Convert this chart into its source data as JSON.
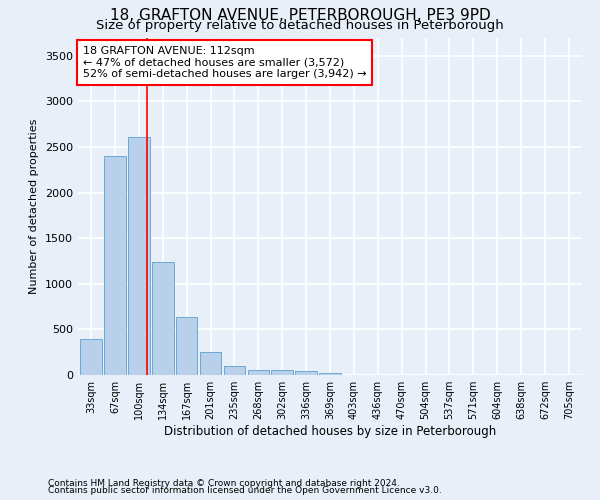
{
  "title": "18, GRAFTON AVENUE, PETERBOROUGH, PE3 9PD",
  "subtitle": "Size of property relative to detached houses in Peterborough",
  "xlabel": "Distribution of detached houses by size in Peterborough",
  "ylabel": "Number of detached properties",
  "footnote1": "Contains HM Land Registry data © Crown copyright and database right 2024.",
  "footnote2": "Contains public sector information licensed under the Open Government Licence v3.0.",
  "categories": [
    "33sqm",
    "67sqm",
    "100sqm",
    "134sqm",
    "167sqm",
    "201sqm",
    "235sqm",
    "268sqm",
    "302sqm",
    "336sqm",
    "369sqm",
    "403sqm",
    "436sqm",
    "470sqm",
    "504sqm",
    "537sqm",
    "571sqm",
    "604sqm",
    "638sqm",
    "672sqm",
    "705sqm"
  ],
  "values": [
    390,
    2400,
    2610,
    1240,
    640,
    250,
    95,
    60,
    55,
    40,
    25,
    0,
    0,
    0,
    0,
    0,
    0,
    0,
    0,
    0,
    0
  ],
  "bar_color": "#b8d0ea",
  "bar_edge_color": "#6aaad4",
  "ylim": [
    0,
    3700
  ],
  "yticks": [
    0,
    500,
    1000,
    1500,
    2000,
    2500,
    3000,
    3500
  ],
  "red_line_x": 2.32,
  "annotation_text1": "18 GRAFTON AVENUE: 112sqm",
  "annotation_text2": "← 47% of detached houses are smaller (3,572)",
  "annotation_text3": "52% of semi-detached houses are larger (3,942) →",
  "annotation_box_color": "white",
  "annotation_edge_color": "red",
  "bg_color": "#e8eff8",
  "grid_color": "#ffffff",
  "title_fontsize": 11,
  "subtitle_fontsize": 9.5
}
